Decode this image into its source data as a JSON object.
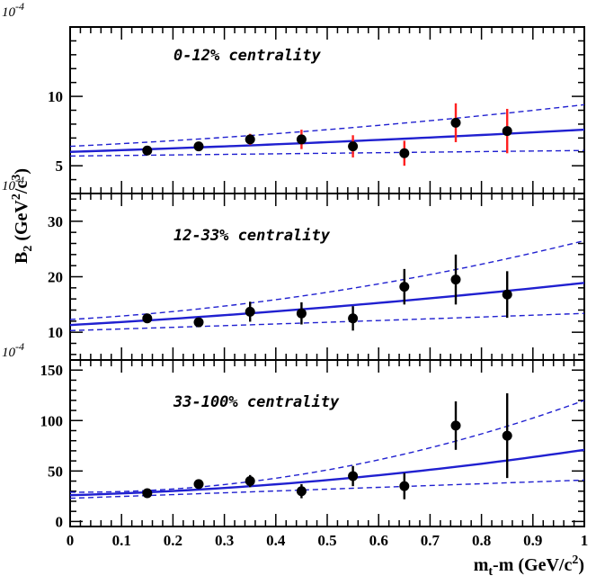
{
  "chart_data": {
    "type": "scatter",
    "xlabel_main": "m",
    "xlabel_sub": "t",
    "xlabel_rest": "-m (GeV/c",
    "xlabel_sup": "2",
    "xlabel_end": ")",
    "ylabel_main": "B",
    "ylabel_sub": "2",
    "ylabel_mid": " (GeV",
    "ylabel_sup1": "2",
    "ylabel_slash": "/c",
    "ylabel_sup2": "3",
    "ylabel_end": ")",
    "xlim": [
      0,
      1
    ],
    "x_ticks": [
      "0",
      "0.1",
      "0.2",
      "0.3",
      "0.4",
      "0.5",
      "0.6",
      "0.7",
      "0.8",
      "0.9",
      "1"
    ],
    "scale_label": "10",
    "scale_exp": "-4",
    "panels": [
      {
        "title": "0-12% centrality",
        "ylim": [
          3,
          15
        ],
        "y_ticks": [
          5,
          10
        ],
        "y_tick_labels": [
          "5",
          "10"
        ],
        "points": {
          "x": [
            0.15,
            0.25,
            0.35,
            0.45,
            0.55,
            0.65,
            0.75,
            0.85
          ],
          "y": [
            6.1,
            6.4,
            6.9,
            6.9,
            6.4,
            5.9,
            8.1,
            7.5
          ],
          "err": [
            0.25,
            0.3,
            0.4,
            0.7,
            0.8,
            0.9,
            1.4,
            1.6
          ],
          "err_color": "#ff2020"
        },
        "fit_line": {
          "x": [
            0,
            0.5,
            1
          ],
          "y": [
            6.0,
            6.7,
            7.6
          ],
          "color": "#2020d0"
        },
        "band_upper": {
          "x": [
            0,
            0.5,
            1
          ],
          "y": [
            6.4,
            7.6,
            9.4
          ],
          "color": "#2020d0"
        },
        "band_lower": {
          "x": [
            0,
            0.5,
            1
          ],
          "y": [
            5.7,
            5.9,
            6.1
          ],
          "color": "#2020d0"
        }
      },
      {
        "title": "12-33% centrality",
        "ylim": [
          5,
          35
        ],
        "y_ticks": [
          10,
          20,
          30
        ],
        "y_tick_labels": [
          "10",
          "20",
          "30"
        ],
        "points": {
          "x": [
            0.15,
            0.25,
            0.35,
            0.45,
            0.55,
            0.65,
            0.75,
            0.85
          ],
          "y": [
            12.5,
            11.8,
            13.7,
            13.4,
            12.5,
            18.2,
            19.5,
            16.8
          ],
          "err": [
            0.8,
            0.8,
            1.8,
            2.0,
            2.2,
            3.2,
            4.5,
            4.2
          ],
          "err_color": "#000000"
        },
        "fit_line": {
          "x": [
            0,
            0.5,
            1
          ],
          "y": [
            11.3,
            14.5,
            18.9
          ],
          "color": "#2020d0"
        },
        "band_upper": {
          "x": [
            0,
            0.5,
            1
          ],
          "y": [
            12.3,
            17.2,
            26.5
          ],
          "color": "#2020d0"
        },
        "band_lower": {
          "x": [
            0,
            0.5,
            1
          ],
          "y": [
            10.3,
            11.8,
            13.4
          ],
          "color": "#2020d0"
        }
      },
      {
        "title": "33-100% centrality",
        "ylim": [
          -5,
          160
        ],
        "y_ticks": [
          0,
          50,
          100,
          150
        ],
        "y_tick_labels": [
          "0",
          "50",
          "100",
          "150"
        ],
        "points": {
          "x": [
            0.15,
            0.25,
            0.35,
            0.45,
            0.55,
            0.65,
            0.75,
            0.85
          ],
          "y": [
            28,
            37,
            40,
            30,
            45,
            35,
            95,
            85
          ],
          "err": [
            3,
            4,
            6,
            7,
            10,
            13,
            24,
            42
          ],
          "err_color": "#000000"
        },
        "fit_line": {
          "x": [
            0,
            0.5,
            1
          ],
          "y": [
            26,
            41,
            71
          ],
          "color": "#2020d0"
        },
        "band_upper": {
          "x": [
            0,
            0.5,
            1
          ],
          "y": [
            29,
            51,
            120
          ],
          "color": "#2020d0"
        },
        "band_lower": {
          "x": [
            0,
            0.5,
            1
          ],
          "y": [
            23,
            32,
            41
          ],
          "color": "#2020d0"
        }
      }
    ]
  }
}
